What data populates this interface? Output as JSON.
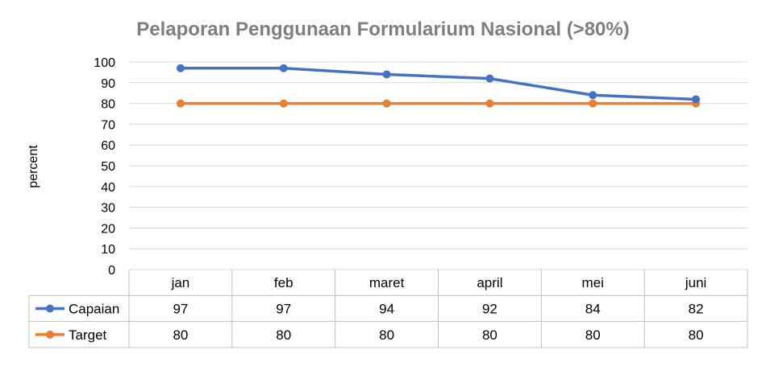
{
  "chart_data": {
    "type": "line",
    "title": "Pelaporan  Penggunaan Formularium Nasional (>80%)",
    "ylabel": "percent",
    "xlabel": "",
    "categories": [
      "jan",
      "feb",
      "maret",
      "april",
      "mei",
      "juni"
    ],
    "ylim": [
      0,
      100
    ],
    "yticks": [
      0,
      10,
      20,
      30,
      40,
      50,
      60,
      70,
      80,
      90,
      100
    ],
    "grid": true,
    "legend": "data-table",
    "series": [
      {
        "name": "Capaian",
        "values": [
          97,
          97,
          94,
          92,
          84,
          82
        ],
        "color": "#4472c4"
      },
      {
        "name": "Target",
        "values": [
          80,
          80,
          80,
          80,
          80,
          80
        ],
        "color": "#ed7d31"
      }
    ]
  }
}
